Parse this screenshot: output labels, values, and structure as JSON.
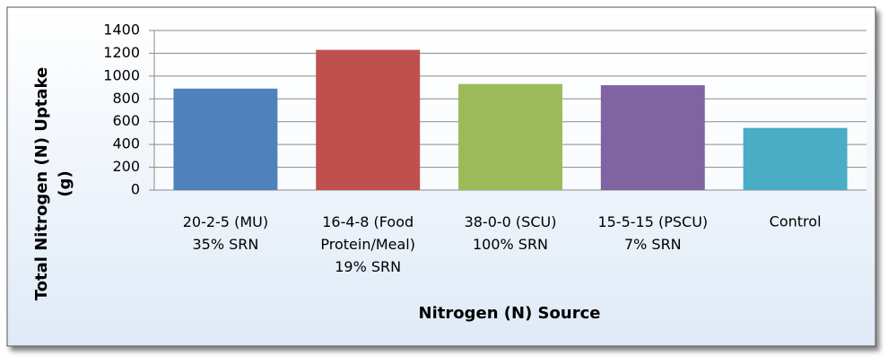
{
  "chart_data": {
    "type": "bar",
    "categories": [
      "20-2-5 (MU)\n35% SRN",
      "16-4-8 (Food\nProtein/Meal)\n19% SRN",
      "38-0-0 (SCU)\n100% SRN",
      "15-5-15 (PSCU)\n7% SRN",
      "Control"
    ],
    "values": [
      890,
      1230,
      930,
      920,
      545
    ],
    "colors": [
      "#4f81bd",
      "#c0504d",
      "#9bbb59",
      "#8064a2",
      "#4bacc6"
    ],
    "x_label": "Nitrogen (N) Source",
    "y_label": "Total Nitrogen (N) Uptake\n(g)",
    "ylim": [
      0,
      1400
    ],
    "yticks": [
      0,
      200,
      400,
      600,
      800,
      1000,
      1200,
      1400
    ],
    "grid": true
  }
}
